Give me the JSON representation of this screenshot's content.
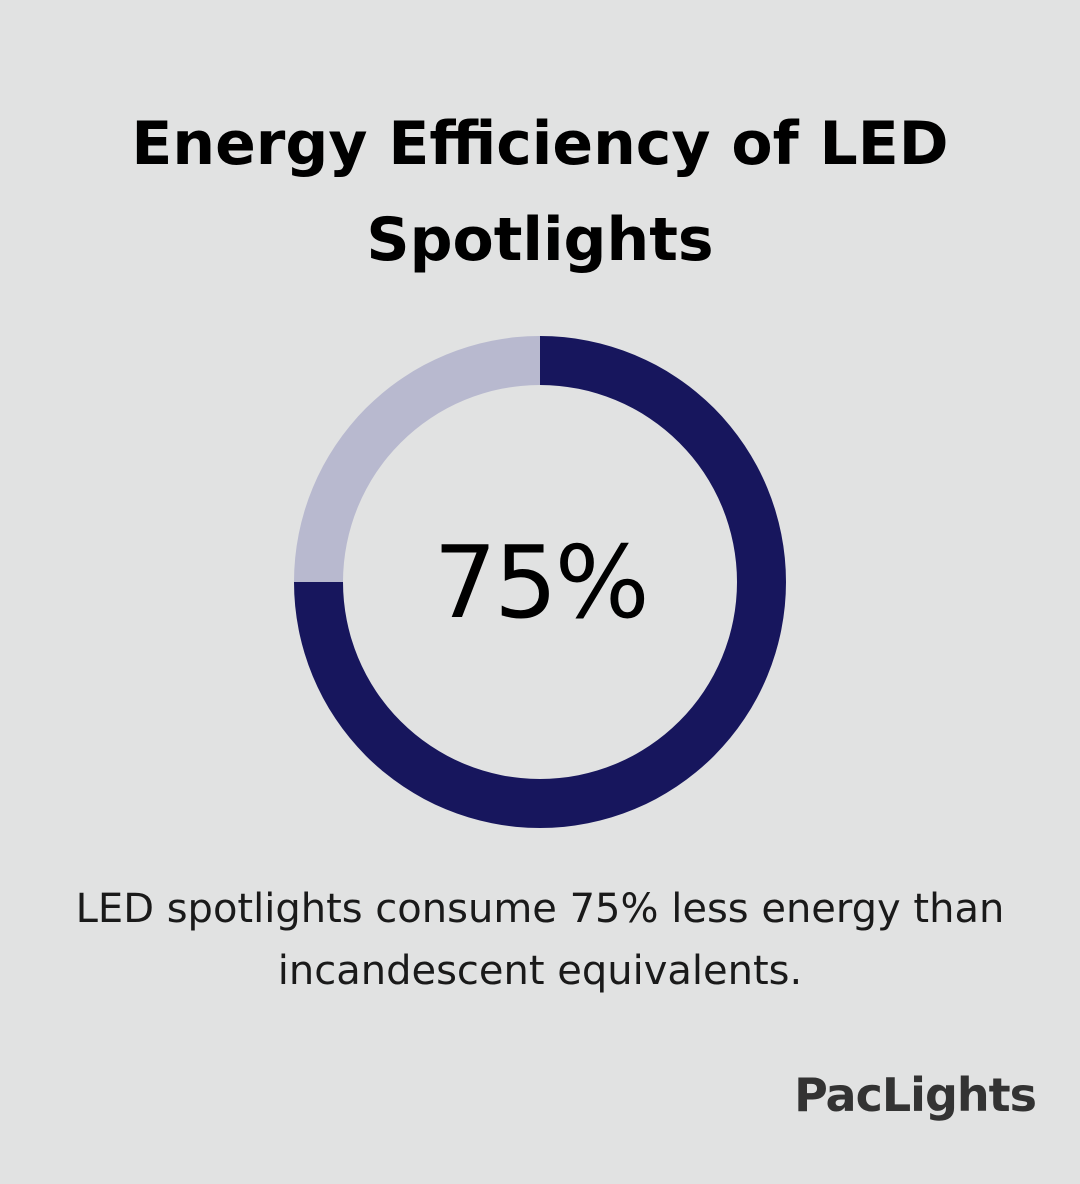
{
  "header": {
    "title": "Energy Efficiency of LED Spotlights"
  },
  "donut": {
    "center_label": "75%"
  },
  "caption": {
    "text": "LED spotlights consume 75% less energy than incandescent equivalents."
  },
  "brand": {
    "name": "PacLights"
  },
  "colors": {
    "background": "#e1e2e2",
    "primary": "#17165d",
    "remainder": "#b8b9cf",
    "text": "#000000"
  },
  "chart_data": {
    "type": "pie",
    "title": "Energy Efficiency of LED Spotlights",
    "donut": true,
    "categories": [
      "",
      ""
    ],
    "values": [
      75,
      25
    ],
    "colors": [
      "#17165d",
      "#b8b9cf"
    ],
    "center_label": "75%"
  }
}
